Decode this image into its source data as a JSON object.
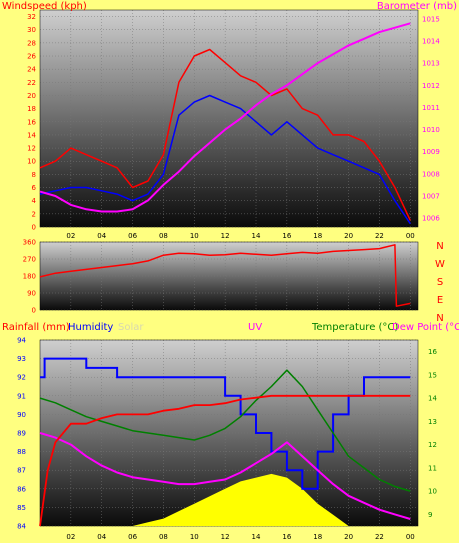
{
  "chart_data": [
    {
      "type": "line",
      "panel": "wind-baro",
      "title": "",
      "ylabel_left": "Windspeed (kph)",
      "ylabel_right": "Barometer (mb)",
      "x_ticks": [
        "02",
        "04",
        "06",
        "08",
        "10",
        "12",
        "14",
        "16",
        "18",
        "20",
        "22",
        "00"
      ],
      "yticks_left": [
        "0",
        "2",
        "4",
        "6",
        "8",
        "10",
        "12",
        "14",
        "16",
        "18",
        "20",
        "22",
        "24",
        "26",
        "28",
        "30",
        "32"
      ],
      "yticks_right": [
        "1006",
        "1007",
        "1008",
        "1009",
        "1010",
        "1011",
        "1012",
        "1013",
        "1014",
        "1015"
      ],
      "ylim_left": [
        0,
        33
      ],
      "ylim_right": [
        1005.6,
        1015.4
      ],
      "series": [
        {
          "key": "gust",
          "color": "#ff0000",
          "x": [
            0,
            1,
            2,
            3,
            4,
            5,
            6,
            7,
            8,
            9,
            10,
            11,
            12,
            13,
            14,
            15,
            16,
            17,
            18,
            19,
            20,
            21,
            22,
            23,
            24
          ],
          "y": [
            9,
            10,
            12,
            11,
            10,
            9,
            6,
            7,
            11,
            22,
            26,
            27,
            25,
            23,
            22,
            20,
            21,
            18,
            17,
            14,
            14,
            13,
            10,
            6,
            1
          ]
        },
        {
          "key": "avg",
          "color": "#0000ff",
          "x": [
            0,
            1,
            2,
            3,
            4,
            5,
            6,
            7,
            8,
            9,
            10,
            11,
            12,
            13,
            14,
            15,
            16,
            17,
            18,
            19,
            20,
            21,
            22,
            23,
            24
          ],
          "y": [
            5,
            5.5,
            6,
            6,
            5.5,
            5,
            4,
            5,
            8,
            17,
            19,
            20,
            19,
            18,
            16,
            14,
            16,
            14,
            12,
            11,
            10,
            9,
            8,
            4,
            0.5
          ]
        },
        {
          "key": "baro",
          "color": "#ff00ff",
          "x": [
            0,
            1,
            2,
            3,
            4,
            5,
            6,
            7,
            8,
            9,
            10,
            11,
            12,
            13,
            14,
            15,
            16,
            17,
            18,
            19,
            20,
            21,
            22,
            23,
            24
          ],
          "y": [
            1007.2,
            1007.0,
            1006.6,
            1006.4,
            1006.3,
            1006.3,
            1006.4,
            1006.8,
            1007.5,
            1008.1,
            1008.8,
            1009.4,
            1010.0,
            1010.5,
            1011.1,
            1011.6,
            1012.0,
            1012.5,
            1013.0,
            1013.4,
            1013.8,
            1014.1,
            1014.4,
            1014.6,
            1014.8
          ]
        }
      ]
    },
    {
      "type": "line",
      "panel": "direction",
      "yticks": [
        "0",
        "90",
        "180",
        "270",
        "360"
      ],
      "ylim": [
        0,
        360
      ],
      "right_labels": [
        "N",
        "W",
        "S",
        "E",
        "N"
      ],
      "series": [
        {
          "key": "dir",
          "color": "#ff0000",
          "x": [
            0,
            1,
            2,
            3,
            4,
            5,
            6,
            7,
            8,
            9,
            10,
            11,
            12,
            13,
            14,
            15,
            16,
            17,
            18,
            19,
            20,
            21,
            22,
            23,
            23.1,
            24
          ],
          "y": [
            175,
            195,
            205,
            215,
            225,
            235,
            245,
            260,
            290,
            300,
            298,
            290,
            292,
            300,
            295,
            290,
            298,
            305,
            300,
            310,
            315,
            320,
            325,
            345,
            20,
            35
          ]
        }
      ]
    },
    {
      "type": "line",
      "panel": "rain-hum-temp",
      "header_labels": {
        "rain": "Rainfall (mm)",
        "humidity": "Humidity",
        "solar": "Solar",
        "uv": "UV",
        "temperature": "Temperature (°C)",
        "dewpoint": "Dew Point (°C)"
      },
      "x_ticks": [
        "02",
        "04",
        "06",
        "08",
        "10",
        "12",
        "14",
        "16",
        "18",
        "20",
        "22",
        "00"
      ],
      "yticks_left": [
        "84",
        "85",
        "86",
        "87",
        "88",
        "89",
        "90",
        "91",
        "92",
        "93",
        "94"
      ],
      "yticks_right": [
        "9",
        "10",
        "11",
        "12",
        "13",
        "14",
        "15",
        "16"
      ],
      "ylim_left": [
        84,
        94
      ],
      "ylim_right": [
        8.5,
        16.5
      ],
      "series": [
        {
          "key": "humidity",
          "color": "#0000ff",
          "x": [
            0,
            0.3,
            1,
            2,
            3,
            4,
            5,
            6,
            7,
            8,
            9,
            10,
            11,
            12,
            13,
            14,
            15,
            16,
            17,
            18,
            19,
            20,
            21,
            22,
            23,
            24
          ],
          "y": [
            92,
            93,
            93,
            93,
            92.5,
            92.5,
            92,
            92,
            92,
            92,
            92,
            92,
            92,
            91,
            90,
            89,
            88,
            87,
            86,
            88,
            90,
            91,
            92,
            92,
            92,
            92
          ]
        },
        {
          "key": "temperature",
          "color": "#008000",
          "x": [
            0,
            1,
            2,
            3,
            4,
            5,
            6,
            7,
            8,
            9,
            10,
            11,
            12,
            13,
            14,
            15,
            16,
            17,
            18,
            19,
            20,
            21,
            22,
            23,
            24
          ],
          "y": [
            14,
            13.8,
            13.5,
            13.2,
            13.0,
            12.8,
            12.6,
            12.5,
            12.4,
            12.3,
            12.2,
            12.4,
            12.7,
            13.2,
            13.9,
            14.5,
            15.2,
            14.5,
            13.5,
            12.5,
            11.5,
            11.0,
            10.5,
            10.2,
            10.0
          ]
        },
        {
          "key": "dewpoint",
          "color": "#ff00ff",
          "x": [
            0,
            1,
            2,
            3,
            4,
            5,
            6,
            7,
            8,
            9,
            10,
            11,
            12,
            13,
            14,
            15,
            16,
            17,
            18,
            19,
            20,
            21,
            22,
            23,
            24
          ],
          "y": [
            12.5,
            12.3,
            12.0,
            11.5,
            11.1,
            10.8,
            10.6,
            10.5,
            10.4,
            10.3,
            10.3,
            10.4,
            10.5,
            10.8,
            11.2,
            11.6,
            12.1,
            11.5,
            10.9,
            10.3,
            9.8,
            9.5,
            9.2,
            9.0,
            8.8
          ]
        },
        {
          "key": "rain",
          "color": "#ff0000",
          "x": [
            0,
            0.5,
            1,
            2,
            3,
            4,
            5,
            6,
            7,
            8,
            9,
            10,
            11,
            12,
            13,
            14,
            15,
            16,
            17,
            18,
            19,
            20,
            21,
            22,
            23,
            24
          ],
          "y": [
            84,
            87,
            88.5,
            89.5,
            89.5,
            89.8,
            90,
            90,
            90,
            90.2,
            90.3,
            90.5,
            90.5,
            90.6,
            90.8,
            90.9,
            91,
            91,
            91,
            91,
            91,
            91,
            91,
            91,
            91,
            91
          ]
        },
        {
          "key": "solar",
          "color": "#ffff00",
          "x": [
            0,
            5,
            6,
            7,
            8,
            9,
            10,
            11,
            12,
            13,
            14,
            15,
            16,
            17,
            18,
            19,
            20,
            24
          ],
          "y": [
            84,
            84,
            84,
            84.2,
            84.4,
            84.8,
            85.2,
            85.6,
            86.0,
            86.4,
            86.6,
            86.8,
            86.6,
            86.0,
            85.2,
            84.6,
            84,
            84
          ]
        }
      ]
    }
  ]
}
